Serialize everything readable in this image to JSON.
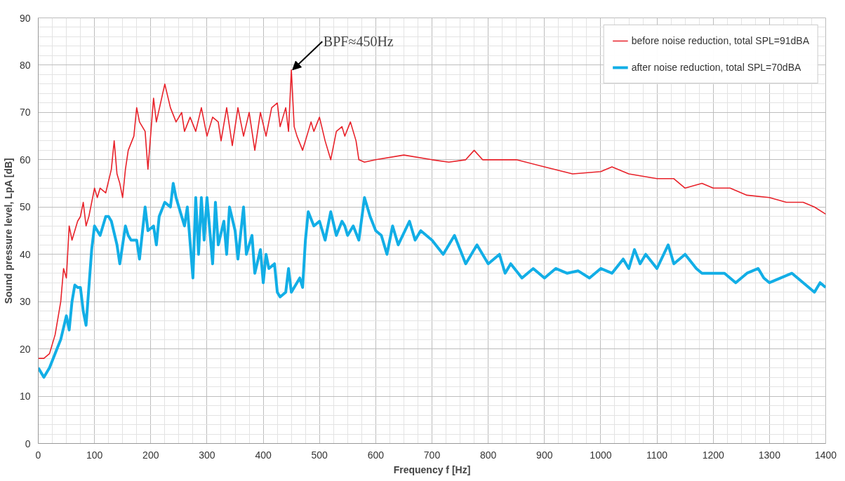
{
  "chart_data": {
    "type": "line",
    "xlabel": "Frequency f [Hz]",
    "ylabel": "Sound pressure level, LpA [dB]",
    "xlim": [
      0,
      1400
    ],
    "xticks": [
      0,
      100,
      200,
      300,
      400,
      500,
      600,
      700,
      800,
      900,
      1000,
      1100,
      1200,
      1300,
      1400
    ],
    "ylim": [
      0,
      90
    ],
    "yticks": [
      0,
      10,
      20,
      30,
      40,
      50,
      60,
      70,
      80,
      90
    ],
    "grid": true,
    "legend": "top right",
    "line_style": "solid",
    "marker": "none",
    "annotations": [
      {
        "text": "BPF≈450Hz",
        "x": 450,
        "y": 79
      }
    ],
    "series": [
      {
        "name": "before noise reduction, total SPL=91dBA",
        "color": "#e8222a",
        "x": [
          0,
          10,
          20,
          30,
          40,
          45,
          50,
          55,
          60,
          70,
          75,
          80,
          85,
          90,
          100,
          105,
          110,
          120,
          130,
          135,
          140,
          145,
          150,
          155,
          160,
          170,
          175,
          180,
          190,
          195,
          205,
          210,
          225,
          235,
          245,
          255,
          260,
          270,
          280,
          290,
          300,
          310,
          320,
          325,
          335,
          345,
          355,
          365,
          375,
          385,
          395,
          405,
          415,
          425,
          430,
          440,
          445,
          450,
          455,
          460,
          470,
          485,
          490,
          500,
          510,
          520,
          530,
          540,
          545,
          555,
          565,
          570,
          580,
          600,
          650,
          700,
          730,
          760,
          775,
          790,
          850,
          900,
          950,
          1000,
          1020,
          1050,
          1100,
          1130,
          1150,
          1180,
          1200,
          1230,
          1260,
          1300,
          1330,
          1360,
          1380,
          1400
        ],
        "values": [
          18,
          18,
          19,
          23,
          30,
          37,
          35,
          46,
          43,
          47,
          48,
          51,
          46,
          48,
          54,
          52,
          54,
          53,
          58,
          64,
          57,
          55,
          52,
          58,
          62,
          65,
          71,
          68,
          66,
          58,
          73,
          68,
          76,
          71,
          68,
          70,
          66,
          69,
          66,
          71,
          65,
          69,
          68,
          64,
          71,
          63,
          71,
          65,
          70,
          62,
          70,
          65,
          71,
          72,
          67,
          71,
          66,
          79,
          67,
          65,
          62,
          68,
          66,
          69,
          64,
          60,
          66,
          67,
          65,
          68,
          64,
          60,
          59.5,
          60,
          61,
          60,
          59.5,
          60,
          62,
          60,
          60,
          58.5,
          57,
          57.5,
          58.5,
          57,
          56,
          56,
          54,
          55,
          54,
          54,
          52.5,
          52,
          51,
          51,
          50,
          48.5
        ]
      },
      {
        "name": "after noise reduction, total SPL=70dBA",
        "color": "#12aee6",
        "x": [
          0,
          10,
          20,
          30,
          40,
          50,
          55,
          60,
          65,
          70,
          75,
          80,
          85,
          95,
          100,
          110,
          120,
          125,
          130,
          140,
          145,
          155,
          160,
          165,
          175,
          180,
          190,
          195,
          205,
          210,
          215,
          225,
          235,
          240,
          245,
          260,
          265,
          275,
          280,
          285,
          290,
          295,
          300,
          310,
          315,
          320,
          330,
          335,
          340,
          350,
          355,
          365,
          370,
          380,
          385,
          395,
          400,
          405,
          410,
          420,
          425,
          430,
          440,
          445,
          450,
          460,
          465,
          470,
          475,
          480,
          490,
          500,
          510,
          520,
          530,
          540,
          545,
          550,
          560,
          570,
          580,
          590,
          600,
          610,
          620,
          630,
          640,
          660,
          670,
          680,
          700,
          720,
          740,
          760,
          780,
          800,
          820,
          830,
          840,
          860,
          880,
          900,
          920,
          940,
          960,
          980,
          1000,
          1020,
          1040,
          1050,
          1060,
          1070,
          1080,
          1100,
          1120,
          1130,
          1150,
          1170,
          1180,
          1200,
          1220,
          1240,
          1260,
          1280,
          1290,
          1300,
          1320,
          1340,
          1360,
          1380,
          1390,
          1400
        ],
        "values": [
          16,
          14,
          16,
          19,
          22,
          27,
          24,
          30,
          33.5,
          33,
          33,
          28,
          25,
          41,
          46,
          44,
          48,
          48,
          47,
          42,
          38,
          46,
          44,
          43,
          43,
          39,
          50,
          45,
          46,
          42,
          48,
          51,
          50,
          55,
          52,
          46,
          50,
          35,
          52,
          40,
          52,
          43,
          52,
          38,
          51,
          42,
          47,
          40,
          50,
          45,
          39,
          50,
          40,
          44,
          36,
          41,
          34,
          40,
          37,
          38,
          32,
          31,
          32,
          37,
          32,
          34,
          35,
          33,
          43,
          49,
          46,
          47,
          43,
          49,
          44,
          47,
          46,
          44,
          46,
          43,
          52,
          48,
          45,
          44,
          40,
          46,
          42,
          47,
          43,
          45,
          43,
          40,
          44,
          38,
          42,
          38,
          40,
          36,
          38,
          35,
          37,
          35,
          37,
          36,
          36.5,
          35,
          37,
          36,
          39,
          37,
          41,
          38,
          40,
          37,
          42,
          38,
          40,
          37,
          36,
          36,
          36,
          34,
          36,
          37,
          35,
          34,
          35,
          36,
          34,
          32,
          34,
          33
        ]
      }
    ]
  }
}
